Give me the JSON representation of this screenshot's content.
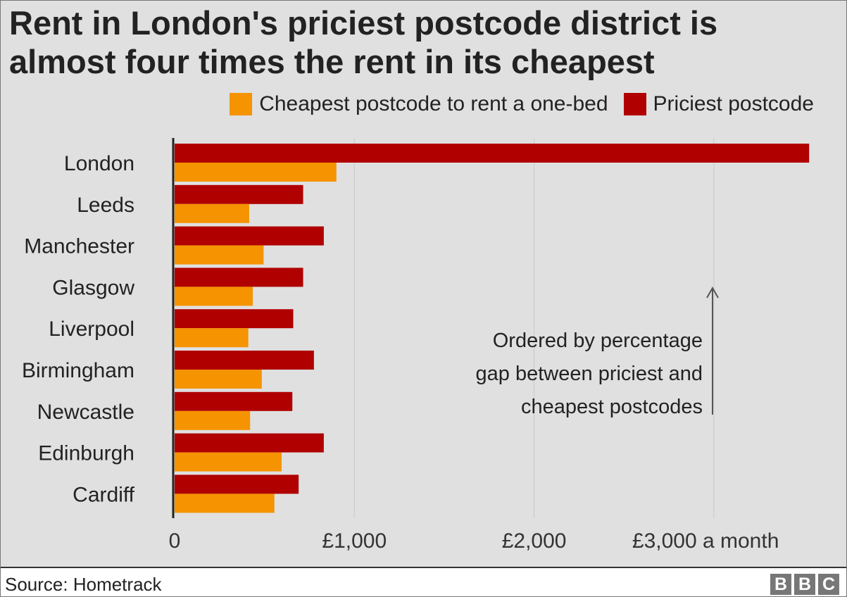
{
  "chart_data": {
    "type": "bar",
    "orientation": "horizontal",
    "title": "Rent in London's priciest postcode district is almost four times the rent in its cheapest",
    "categories": [
      "London",
      "Leeds",
      "Manchester",
      "Glasgow",
      "Liverpool",
      "Birmingham",
      "Newcastle",
      "Edinburgh",
      "Cardiff"
    ],
    "series": [
      {
        "name": "Priciest postcode",
        "color": "#b00000",
        "values": [
          3530,
          715,
          830,
          715,
          660,
          775,
          655,
          830,
          690
        ]
      },
      {
        "name": "Cheapest postcode to rent a one-bed",
        "color": "#f59300",
        "values": [
          900,
          415,
          495,
          435,
          410,
          485,
          420,
          595,
          555
        ]
      }
    ],
    "xlim": [
      0,
      3550
    ],
    "xticks": [
      0,
      1000,
      2000,
      3000
    ],
    "xtick_labels": [
      "0",
      "£1,000",
      "£2,000",
      "£3,000 a month"
    ],
    "grid": true,
    "legend_position": "top",
    "legend": [
      "Cheapest postcode to rent a one-bed",
      "Priciest postcode"
    ],
    "annotation": [
      "Ordered by percentage",
      "gap between priciest and",
      "cheapest postcodes"
    ]
  },
  "footer": {
    "source": "Source: Hometrack",
    "logo": [
      "B",
      "B",
      "C"
    ]
  }
}
